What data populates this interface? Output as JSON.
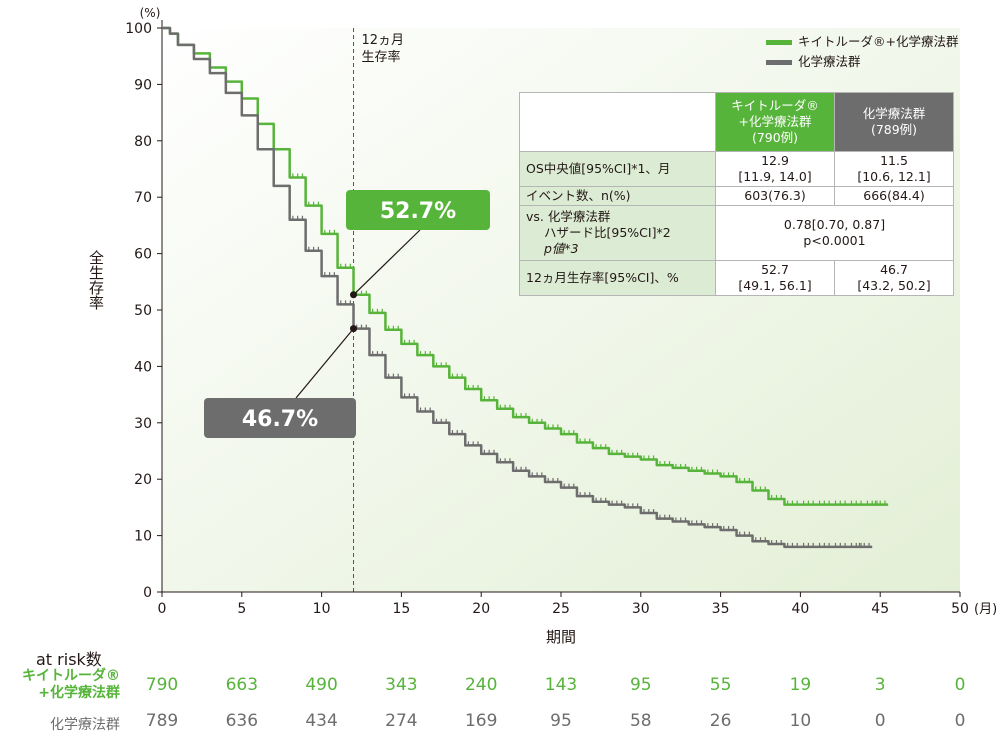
{
  "chart_data": {
    "type": "line",
    "ylabel": "全生存率",
    "yunit": "(%)",
    "xlabel": "期間",
    "xunit": "(月)",
    "xlim": [
      0,
      50
    ],
    "ylim": [
      0,
      100
    ],
    "xticks": [
      0,
      5,
      10,
      15,
      20,
      25,
      30,
      35,
      40,
      45,
      50
    ],
    "yticks": [
      0,
      10,
      20,
      30,
      40,
      50,
      60,
      70,
      80,
      90,
      100
    ],
    "refline": {
      "x": 12,
      "label_line1": "12ヵ月",
      "label_line2": "生存率"
    },
    "series": [
      {
        "name": "キイトルーダ®+化学療法群",
        "color": "#57b43a",
        "x": [
          0,
          0.5,
          1,
          2,
          3,
          4,
          5,
          6,
          7,
          8,
          9,
          10,
          11,
          12,
          13,
          14,
          15,
          16,
          17,
          18,
          19,
          20,
          21,
          22,
          23,
          24,
          25,
          26,
          27,
          28,
          29,
          30,
          31,
          32,
          33,
          34,
          35,
          36,
          37,
          38,
          39,
          40,
          41,
          42,
          43,
          44,
          45,
          45.5
        ],
        "y": [
          100,
          99,
          97,
          95.5,
          93,
          90.5,
          87.5,
          83,
          78.5,
          73.5,
          68.5,
          63.5,
          57.5,
          52.7,
          49.5,
          46.5,
          44,
          42,
          40,
          38,
          36,
          34,
          32.5,
          31,
          30,
          29,
          28,
          26.5,
          25.5,
          24.5,
          24,
          23.5,
          22.5,
          22,
          21.5,
          21,
          20.5,
          19.5,
          18,
          16.5,
          15.5,
          15.5,
          15.5,
          15.5,
          15.5,
          15.5,
          15.5,
          15.5
        ]
      },
      {
        "name": "化学療法群",
        "color": "#6d6d6d",
        "x": [
          0,
          0.5,
          1,
          2,
          3,
          4,
          5,
          6,
          7,
          8,
          9,
          10,
          11,
          12,
          13,
          14,
          15,
          16,
          17,
          18,
          19,
          20,
          21,
          22,
          23,
          24,
          25,
          26,
          27,
          28,
          29,
          30,
          31,
          32,
          33,
          34,
          35,
          36,
          37,
          38,
          39,
          40,
          41,
          42,
          43,
          44,
          44.5
        ],
        "y": [
          100,
          99,
          97,
          94.5,
          92,
          88.5,
          84.5,
          78.5,
          72,
          66,
          60.5,
          56,
          51,
          46.7,
          42,
          38,
          34.5,
          32,
          30,
          28,
          26,
          24.5,
          23,
          21.5,
          20.5,
          19.5,
          18.5,
          17,
          16,
          15.5,
          15,
          14,
          13,
          12.5,
          12,
          11.5,
          11,
          10,
          9,
          8.5,
          8,
          8,
          8,
          8,
          8,
          8,
          8
        ]
      }
    ],
    "callouts": [
      {
        "text": "52.7%",
        "x": 12,
        "y": 52.7,
        "color": "#57b43a"
      },
      {
        "text": "46.7%",
        "x": 12,
        "y": 46.7,
        "color": "#6d6d6d"
      }
    ],
    "legend_position": "top-right"
  },
  "legend": {
    "green_label": "キイトルーダ®+化学療法群",
    "gray_label": "化学療法群"
  },
  "table": {
    "header_green": [
      "キイトルーダ®",
      "+化学療法群",
      "(790例)"
    ],
    "header_gray": [
      "化学療法群",
      "(789例)"
    ],
    "rows": {
      "os_label": "OS中央値[95%CI]*1、月",
      "os_green": [
        "12.9",
        "[11.9, 14.0]"
      ],
      "os_gray": [
        "11.5",
        "[10.6, 12.1]"
      ],
      "event_label": "イベント数、n(%)",
      "event_green": "603(76.3)",
      "event_gray": "666(84.4)",
      "hr_label": [
        "vs. 化学療法群",
        "ハザード比[95%CI]*2",
        "p値*3"
      ],
      "hr_value": [
        "0.78[0.70, 0.87]",
        "p<0.0001"
      ],
      "m12_label": "12ヵ月生存率[95%CI]、%",
      "m12_green": [
        "52.7",
        "[49.1, 56.1]"
      ],
      "m12_gray": [
        "46.7",
        "[43.2, 50.2]"
      ]
    }
  },
  "at_risk": {
    "title": "at risk数",
    "green_label": [
      "キイトルーダ®",
      "+化学療法群"
    ],
    "gray_label": "化学療法群",
    "green_values": [
      "790",
      "663",
      "490",
      "343",
      "240",
      "143",
      "95",
      "55",
      "19",
      "3",
      "0"
    ],
    "gray_values": [
      "789",
      "636",
      "434",
      "274",
      "169",
      "95",
      "58",
      "26",
      "10",
      "0",
      "0"
    ]
  }
}
